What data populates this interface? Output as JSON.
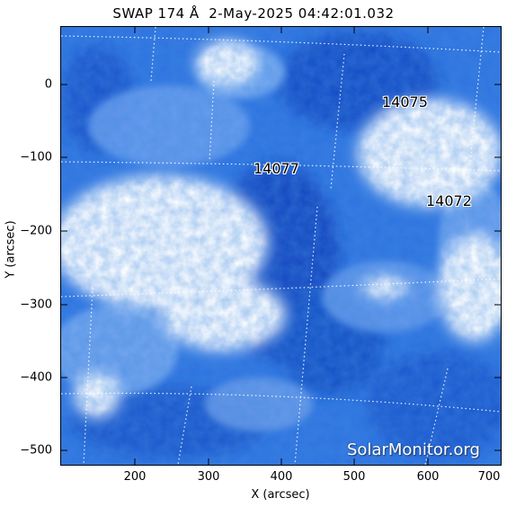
{
  "title": "SWAP 174 Å  2-May-2025 04:42:01.032",
  "axes": {
    "x_label": "X (arcsec)",
    "y_label": "Y (arcsec)",
    "x_ticks": [
      "200",
      "300",
      "400",
      "500",
      "600",
      "700"
    ],
    "y_ticks": [
      "0",
      "−100",
      "−200",
      "−300",
      "−400",
      "−500"
    ]
  },
  "regions": [
    {
      "number": "14075"
    },
    {
      "number": "14077"
    },
    {
      "number": "14072"
    }
  ],
  "watermark": "SolarMonitor.org",
  "colors": {
    "background": "#ffffff",
    "deep_blue": "#1452c8",
    "mid_blue": "#4a88ea",
    "bright": "#ffffff",
    "grid": "#ffffff"
  }
}
